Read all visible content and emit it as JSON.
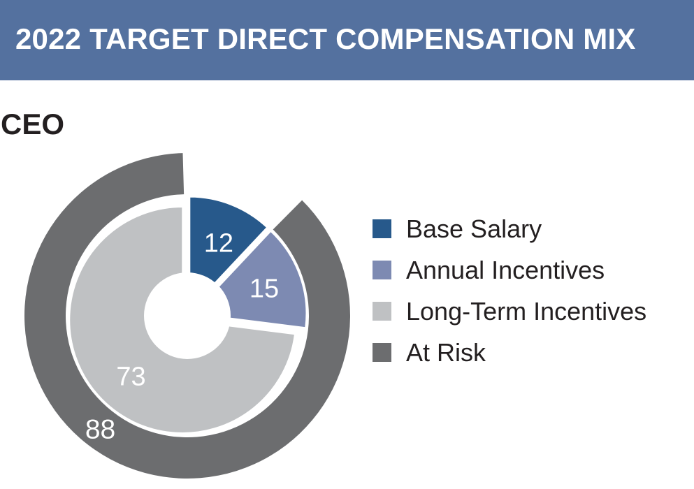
{
  "header": {
    "title": "2022 TARGET DIRECT COMPENSATION MIX",
    "background_color": "#54719F",
    "text_color": "#FFFFFF"
  },
  "group_label": "CEO",
  "legend": {
    "items": [
      {
        "label": "Base Salary",
        "color": "#27598B"
      },
      {
        "label": "Annual Incentives",
        "color": "#7D8AB2"
      },
      {
        "label": "Long-Term Incentives",
        "color": "#BFC1C3"
      },
      {
        "label": "At Risk",
        "color": "#6C6D6F"
      }
    ]
  },
  "chart_data": {
    "type": "pie",
    "donut": true,
    "title": "2022 TARGET DIRECT COMPENSATION MIX",
    "group": "CEO",
    "units": "percent",
    "start_angle_deg": 0,
    "direction": "clockwise",
    "segments": [
      {
        "label": "Base Salary",
        "value": 12,
        "color": "#27598B",
        "label_color": "#FFFFFF"
      },
      {
        "label": "Annual Incentives",
        "value": 15,
        "color": "#7D8AB2",
        "label_color": "#FFFFFF"
      },
      {
        "label": "Long-Term Incentives",
        "value": 73,
        "color": "#BFC1C3",
        "label_color": "#FFFFFF"
      }
    ],
    "outer_ring": {
      "label": "At Risk",
      "value": 88,
      "color": "#6C6D6F",
      "label_color": "#FFFFFF",
      "covers": [
        "Annual Incentives",
        "Long-Term Incentives"
      ]
    },
    "legend_position": "right",
    "legend_entries": [
      "Base Salary",
      "Annual Incentives",
      "Long-Term Incentives",
      "At Risk"
    ]
  }
}
